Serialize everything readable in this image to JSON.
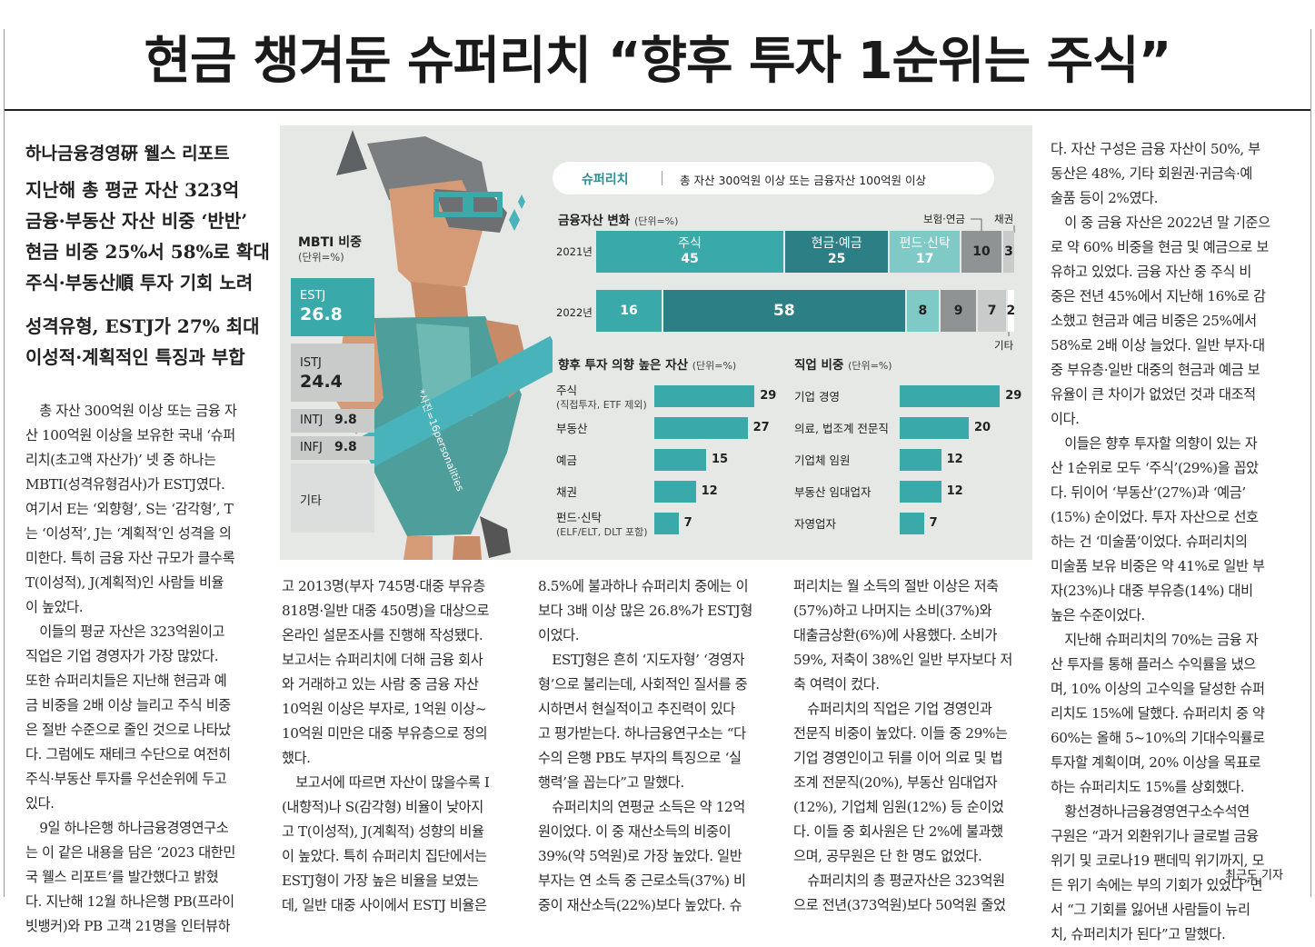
{
  "headline": "현금 챙겨둔 슈퍼리치 “향후 투자 1순위는 주식”",
  "kicker": "하나금융경영硏 웰스 리포트",
  "subheads": [
    "지난해 총 평균 자산 323억",
    "금융·부동산 자산 비중 ‘반반’",
    "현금 비중 25%서 58%로 확대",
    "주식·부동산順 투자 기회 노려",
    "성격유형, ESTJ가 27% 최대",
    "이성적·계획적인 특징과 부합"
  ],
  "colors": {
    "teal": "#3aa9a9",
    "dark_teal": "#2d7f86",
    "light_teal": "#7fcac6",
    "gray": "#8f9394",
    "light_gray": "#c9cbca",
    "bg": "#e6e8e5"
  },
  "infographic": {
    "tag": "슈퍼리치",
    "definition": "총 자산 300억원 이상 또는 금융자산 100억원 이상",
    "mbti": {
      "title": "MBTI 비중",
      "unit": "(단위=%)",
      "items": [
        {
          "label": "ESTJ",
          "value": "26.8"
        },
        {
          "label": "ISTJ",
          "value": "24.4"
        },
        {
          "label": "INTJ",
          "value": "9.8"
        },
        {
          "label": "INFJ",
          "value": "9.8"
        },
        {
          "label": "기타",
          "value": ""
        }
      ]
    },
    "photo_credit": "*사진=16personalities",
    "financial_change": {
      "title": "금융자산 변화",
      "unit": "(단위=%)",
      "labels": {
        "insurance": "보험·연금",
        "bond": "채권",
        "other": "기타"
      },
      "rows": [
        {
          "year": "2021년",
          "segments": [
            {
              "label": "주식",
              "value": 45
            },
            {
              "label": "현금·예금",
              "value": 25
            },
            {
              "label": "펀드·신탁",
              "value": 17
            },
            {
              "label": "",
              "value": 10
            },
            {
              "label": "",
              "value": 3
            }
          ]
        },
        {
          "year": "2022년",
          "segments": [
            {
              "label": "",
              "value": 16
            },
            {
              "label": "",
              "value": 58
            },
            {
              "label": "",
              "value": 8
            },
            {
              "label": "",
              "value": 9
            },
            {
              "label": "",
              "value": 7
            },
            {
              "label": "",
              "value": 2
            }
          ]
        }
      ]
    },
    "future_investment": {
      "title": "향후 투자 의향 높은 자산",
      "unit": "(단위=%)",
      "items": [
        {
          "label": "주식",
          "note": "(직접투자, ETF 제외)",
          "value": 29
        },
        {
          "label": "부동산",
          "note": "",
          "value": 27
        },
        {
          "label": "예금",
          "note": "",
          "value": 15
        },
        {
          "label": "채권",
          "note": "",
          "value": 12
        },
        {
          "label": "펀드·신탁",
          "note": "(ELF/ELT, DLT 포함)",
          "value": 7
        }
      ]
    },
    "occupation": {
      "title": "직업 비중",
      "unit": "(단위=%)",
      "items": [
        {
          "label": "기업 경영",
          "value": 29
        },
        {
          "label": "의료, 법조계 전문직",
          "value": 20
        },
        {
          "label": "기업체 임원",
          "value": 12
        },
        {
          "label": "부동산 임대업자",
          "value": 12
        },
        {
          "label": "자영업자",
          "value": 7
        }
      ]
    }
  },
  "columns": [
    [
      {
        "indent": true,
        "lines": [
          "총 자산 300억원 이상 또는 금융 자",
          "산 100억원 이상을 보유한 국내 ‘슈퍼",
          "리치(초고액 자산가)’ 넷 중 하나는",
          "MBTI(성격유형검사)가 ESTJ였다.",
          "여기서 E는 ‘외향형’, S는 ‘감각형’, T",
          "는 ‘이성적’, J는 ‘계획적’인 성격을 의",
          "미한다. 특히 금융 자산 규모가 클수록",
          "T(이성적), J(계획적)인 사람들 비율",
          "이 높았다."
        ]
      },
      {
        "indent": true,
        "lines": [
          "이들의 평균 자산은 323억원이고",
          "직업은 기업 경영자가 가장 많았다.",
          "또한 슈퍼리치들은 지난해 현금과 예",
          "금 비중을 2배 이상 늘리고 주식 비중",
          "은 절반 수준으로 줄인 것으로 나타났",
          "다. 그럼에도 재테크 수단으로 여전히",
          "주식·부동산 투자를 우선순위에 두고",
          "있다."
        ]
      },
      {
        "indent": true,
        "lines": [
          "9일 하나은행 하나금융경영연구소",
          "는 이 같은 내용을 담은 ‘2023 대한민",
          "국 웰스 리포트’를 발간했다고 밝혔",
          "다. 지난해 12월 하나은행 PB(프라이",
          "빗뱅커)와 PB 고객 21명을 인터뷰하"
        ]
      }
    ],
    [
      {
        "indent": false,
        "lines": [
          "고 2013명(부자 745명·대중 부유층",
          "818명·일반 대중 450명)을 대상으로",
          "온라인 설문조사를 진행해 작성됐다.",
          "보고서는 슈퍼리치에 더해 금융 회사",
          "와 거래하고 있는 사람 중 금융 자산",
          "10억원 이상은 부자로, 1억원 이상~",
          "10억원 미만은 대중 부유층으로 정의",
          "했다."
        ]
      },
      {
        "indent": true,
        "lines": [
          "보고서에 따르면 자산이 많을수록 I",
          "(내향적)나 S(감각형) 비율이 낮아지",
          "고 T(이성적), J(계획적) 성향의 비율",
          "이 높았다. 특히 슈퍼리치 집단에서는",
          "ESTJ형이 가장 높은 비율을 보였는",
          "데, 일반 대중 사이에서 ESTJ 비율은"
        ]
      }
    ],
    [
      {
        "indent": false,
        "lines": [
          "8.5%에 불과하나 슈퍼리치 중에는 이",
          "보다 3배 이상 많은 26.8%가 ESTJ형",
          "이었다."
        ]
      },
      {
        "indent": true,
        "lines": [
          "ESTJ형은 흔히 ‘지도자형’ ‘경영자",
          "형’으로 불리는데, 사회적인 질서를 중",
          "시하면서 현실적이고 추진력이 있다",
          "고 평가받는다. 하나금융연구소는 “다",
          "수의 은행 PB도 부자의 특징으로 ‘실",
          "행력’을 꼽는다”고 말했다."
        ]
      },
      {
        "indent": true,
        "lines": [
          "슈퍼리치의 연평균 소득은 약 12억",
          "원이었다. 이 중 재산소득의 비중이",
          "39%(약 5억원)로 가장 높았다. 일반",
          "부자는 연 소득 중 근로소득(37%) 비",
          "중이 재산소득(22%)보다 높았다. 슈"
        ]
      }
    ],
    [
      {
        "indent": false,
        "lines": [
          "퍼리치는 월 소득의 절반 이상은 저축",
          "(57%)하고 나머지는 소비(37%)와",
          "대출금상환(6%)에 사용했다. 소비가",
          "59%, 저축이 38%인 일반 부자보다 저",
          "축 여력이 컸다."
        ]
      },
      {
        "indent": true,
        "lines": [
          "슈퍼리치의 직업은 기업 경영인과",
          "전문직 비중이 높았다. 이들 중 29%는",
          "기업 경영인이고 뒤를 이어 의료 및 법",
          "조계 전문직(20%), 부동산 임대업자",
          "(12%), 기업체 임원(12%) 등 순이었",
          "다. 이들 중 회사원은 단 2%에 불과했",
          "으며, 공무원은 단 한 명도 없었다."
        ]
      },
      {
        "indent": true,
        "lines": [
          "슈퍼리치의 총 평균자산은 323억원",
          "으로 전년(373억원)보다 50억원 줄었"
        ]
      }
    ],
    [
      {
        "indent": false,
        "lines": [
          "다. 자산 구성은 금융 자산이 50%, 부",
          "동산은 48%, 기타 회원권·귀금속·예",
          "술품 등이 2%였다."
        ]
      },
      {
        "indent": true,
        "lines": [
          "이 중 금융 자산은 2022년 말 기준으",
          "로 약 60% 비중을 현금 및 예금으로 보",
          "유하고 있었다. 금융 자산 중 주식 비",
          "중은 전년 45%에서 지난해 16%로 감",
          "소했고 현금과 예금 비중은 25%에서",
          "58%로 2배 이상 늘었다. 일반 부자·대",
          "중 부유층·일반 대중의 현금과 예금 보",
          "유율이 큰 차이가 없었던 것과 대조적",
          "이다."
        ]
      },
      {
        "indent": true,
        "lines": [
          "이들은 향후 투자할 의향이 있는 자",
          "산 1순위로 모두 ‘주식’(29%)을 꼽았",
          "다. 뒤이어 ‘부동산’(27%)과 ‘예금’",
          "(15%) 순이었다. 투자 자산으로 선호",
          "하는 건 ‘미술품’이었다. 슈퍼리치의",
          "미술품 보유 비중은 약 41%로 일반 부",
          "자(23%)나 대중 부유층(14%) 대비",
          "높은 수준이었다."
        ]
      },
      {
        "indent": true,
        "lines": [
          "지난해 슈퍼리치의 70%는 금융 자",
          "산 투자를 통해 플러스 수익률을 냈으",
          "며, 10% 이상의 고수익을 달성한 슈퍼",
          "리치도 15%에 달했다. 슈퍼리치 중 약",
          "60%는 올해 5~10%의 기대수익률로",
          "투자할 계획이며, 20% 이상을 목표로",
          "하는 슈퍼리치도 15%를 상회했다."
        ]
      },
      {
        "indent": true,
        "lines": [
          "황선경하나금융경영연구소수석연",
          "구원은 “과거 외환위기나 글로벌 금융",
          "위기 및 코로나19 팬데믹 위기까지, 모",
          "든 위기 속에는 부의 기회가 있었다”면",
          "서 “그 기회를 잃어낸 사람들이 뉴리",
          "치, 슈퍼리치가 된다”고 말했다."
        ]
      }
    ]
  ],
  "byline": "최근도 기자"
}
